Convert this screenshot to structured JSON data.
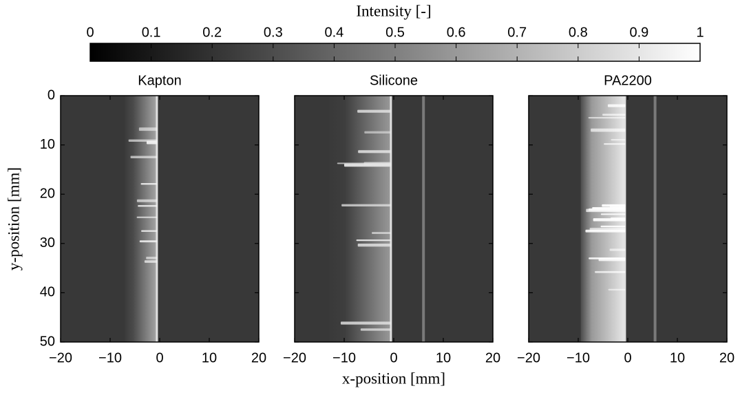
{
  "colorbar": {
    "label": "Intensity [-]",
    "clim": [
      0,
      1
    ],
    "ticks": [
      0,
      0.1,
      0.2,
      0.3,
      0.4,
      0.5,
      0.6,
      0.7,
      0.8,
      0.9,
      1
    ],
    "colormap": "gray"
  },
  "x_label": "x-position [mm]",
  "y_label": "y-position [mm]",
  "chart_data": [
    {
      "type": "image",
      "title": "Kapton",
      "xlim": [
        -20,
        20
      ],
      "xticks": [
        {
          "value": -20,
          "label": "−20"
        },
        {
          "value": -10,
          "label": "−10"
        },
        0,
        10,
        20
      ],
      "ylim": [
        0,
        50
      ],
      "y_reversed": true,
      "yticks": [
        0,
        10,
        20,
        30,
        40,
        50
      ]
    },
    {
      "type": "image",
      "title": "Silicone",
      "xlim": [
        -20,
        20
      ],
      "xticks": [
        {
          "value": -20,
          "label": "−20"
        },
        {
          "value": -10,
          "label": "−10"
        },
        0,
        10,
        20
      ],
      "ylim": [
        0,
        50
      ],
      "y_reversed": true
    },
    {
      "type": "image",
      "title": "PA2200",
      "xlim": [
        -20,
        20
      ],
      "xticks": [
        {
          "value": -20,
          "label": "−20"
        },
        {
          "value": -10,
          "label": "−10"
        },
        0,
        10,
        20
      ],
      "ylim": [
        0,
        50
      ],
      "y_reversed": true
    }
  ]
}
